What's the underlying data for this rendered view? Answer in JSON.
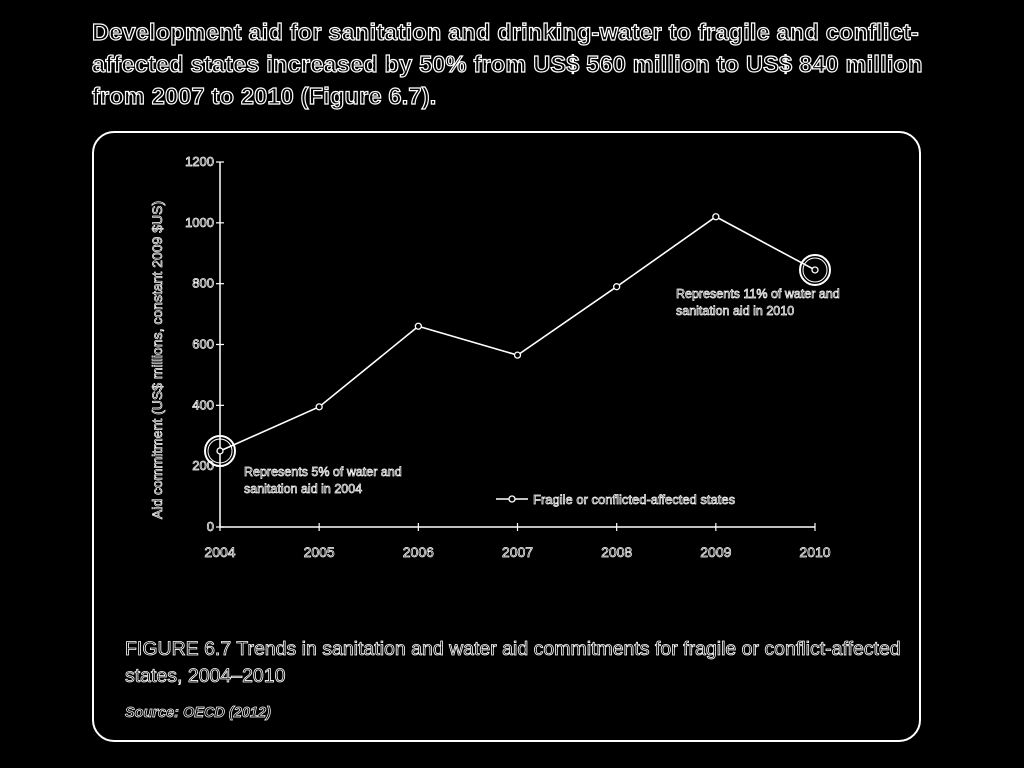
{
  "headline": "Development aid for sanitation and drinking-water to fragile and conflict-affected states increased by 50% from US$ 560 million to US$ 840 million from 2007 to 2010 (Figure 6.7).",
  "caption": "FIGURE 6.7 Trends in sanitation and water aid commitments for fragile or conflict-affected states, 2004–2010",
  "source": "Source: OECD (2012)",
  "chart_data": {
    "type": "line",
    "ylabel": "Aid commitment (US$ millions, constant 2009 $US)",
    "xlabel": "",
    "ylim": [
      0,
      1200
    ],
    "yticks": [
      "0",
      "200",
      "400",
      "600",
      "800",
      "1000",
      "1200"
    ],
    "categories": [
      "2004",
      "2005",
      "2006",
      "2007",
      "2008",
      "2009",
      "2010"
    ],
    "series": [
      {
        "name": "Fragile or conflicted-affected states",
        "values": [
          250,
          395,
          660,
          565,
          790,
          1020,
          845
        ]
      }
    ],
    "legend_position": "bottom-right",
    "grid": false,
    "annotations": [
      {
        "category": "2004",
        "lines": [
          "Represents 5% of water and",
          "sanitation aid in 2004"
        ]
      },
      {
        "category": "2010",
        "lines": [
          "Represents 11% of water and",
          "sanitation aid in 2010"
        ]
      }
    ]
  }
}
